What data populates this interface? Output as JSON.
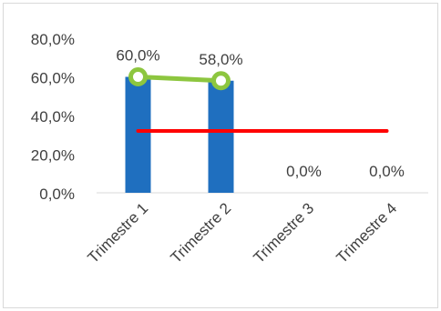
{
  "chart_data": {
    "type": "bar",
    "categories": [
      "Trimestre 1",
      "Trimestre 2",
      "Trimestre 3",
      "Trimestre 4"
    ],
    "ylim": [
      0,
      80
    ],
    "yticks": [
      "80,0%",
      "60,0%",
      "40,0%",
      "20,0%",
      "0,0%"
    ],
    "ytick_values": [
      80,
      60,
      40,
      20,
      0
    ],
    "grid": false,
    "series": [
      {
        "type": "bar",
        "values": [
          60,
          58,
          0,
          0
        ],
        "labels": [
          "60,0%",
          "58,0%",
          "0,0%",
          "0,0%"
        ],
        "color": "#1f6fbf"
      },
      {
        "type": "line",
        "values": [
          60,
          58,
          null,
          null
        ],
        "color": "#8dc63f",
        "marker": "circle"
      },
      {
        "type": "line",
        "values": [
          32,
          32,
          32,
          32
        ],
        "color": "#ff0000",
        "marker": "none"
      }
    ],
    "title": "",
    "xlabel": "",
    "ylabel": ""
  }
}
